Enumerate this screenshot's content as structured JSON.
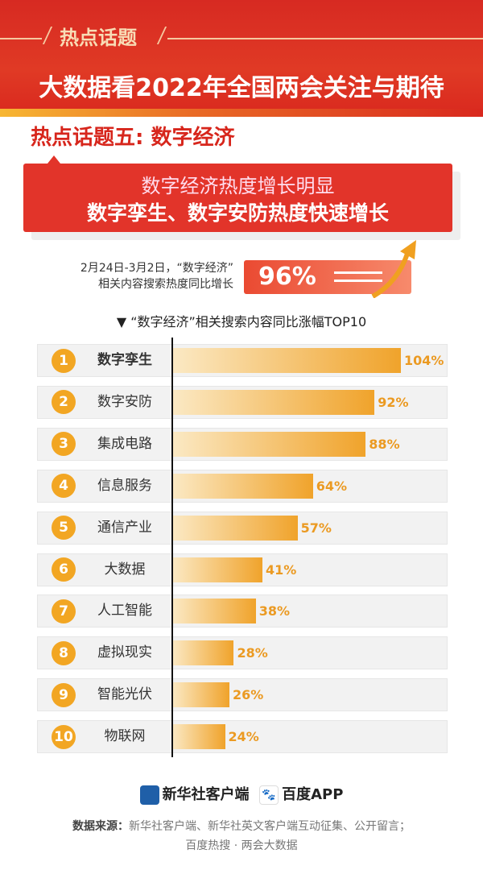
{
  "header": {
    "tag": "热点话题",
    "title": "大数据看2022年全国两会关注与期待"
  },
  "subtitle": "热点话题五: 数字经济",
  "banner": {
    "line1": "数字经济热度增长明显",
    "line2": "数字孪生、数字安防热度快速增长"
  },
  "highlight": {
    "note_line1": "2月24日-3月2日，“数字经济”",
    "note_line2": "相关内容搜索热度同比增长",
    "value": "96%"
  },
  "colors": {
    "red": "#e2342a",
    "bar": "#f0a32b",
    "rank": "#f2a623"
  },
  "chart_data": {
    "type": "bar",
    "orientation": "horizontal",
    "title": "▼ “数字经济”相关搜索内容同比涨幅TOP10",
    "ranks": [
      "1",
      "2",
      "3",
      "4",
      "5",
      "6",
      "7",
      "8",
      "9",
      "10"
    ],
    "categories": [
      "数字孪生",
      "数字安防",
      "集成电路",
      "信息服务",
      "通信产业",
      "大数据",
      "人工智能",
      "虚拟现实",
      "智能光伏",
      "物联网"
    ],
    "values": [
      104,
      92,
      88,
      64,
      57,
      41,
      38,
      28,
      26,
      24
    ],
    "labels": [
      "104%",
      "92%",
      "88%",
      "64%",
      "57%",
      "41%",
      "38%",
      "28%",
      "26%",
      "24%"
    ],
    "unit": "%"
  },
  "footer": {
    "logo1": "新华社客户端",
    "logo2": "百度APP",
    "source_label": "数据来源：",
    "source_line1": "新华社客户端、新华社英文客户端互动征集、公开留言；",
    "source_line2": "百度热搜 · 两会大数据"
  }
}
